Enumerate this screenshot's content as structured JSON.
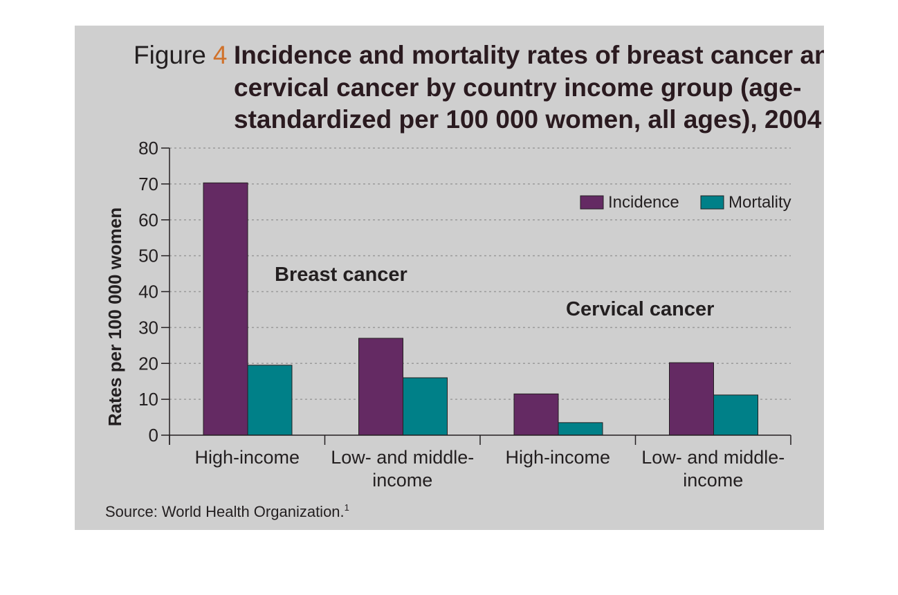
{
  "figure": {
    "title_prefix": "Figure",
    "title_number": "4",
    "title_lines": [
      "Incidence and mortality rates of breast cancer and",
      "cervical cancer by country income group (age-",
      "standardized per 100 000 women, all ages), 2004"
    ],
    "source_text": "Source: World Health Organization.",
    "source_superscript": "1"
  },
  "chart_data": {
    "type": "bar",
    "ylabel": "Rates per 100 000 women",
    "ylim": [
      0,
      80
    ],
    "yticks": [
      0,
      10,
      20,
      30,
      40,
      50,
      60,
      70,
      80
    ],
    "grid": true,
    "legend_position": "top-right",
    "group_labels": [
      "Breast cancer",
      "Cervical cancer"
    ],
    "categories": [
      [
        "High-income"
      ],
      [
        "Low- and middle-",
        "income"
      ],
      [
        "High-income"
      ],
      [
        "Low- and middle-",
        "income"
      ]
    ],
    "series": [
      {
        "name": "Incidence",
        "color": "#642a63",
        "values": [
          70.3,
          27,
          11.5,
          20.2
        ]
      },
      {
        "name": "Mortality",
        "color": "#008088",
        "values": [
          19.5,
          16,
          3.5,
          11.2
        ]
      }
    ]
  }
}
